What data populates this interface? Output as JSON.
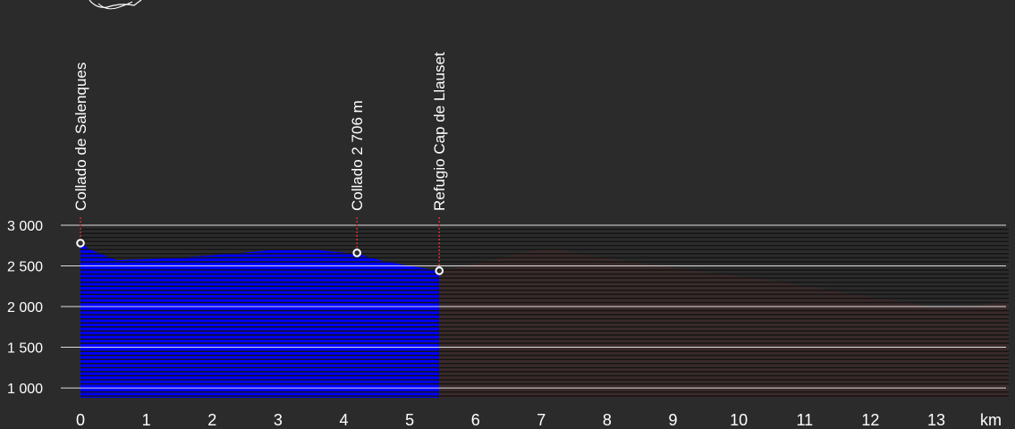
{
  "chart_data": {
    "type": "area",
    "title": "",
    "xlabel": "",
    "ylabel": "",
    "x_unit": "km",
    "xlim": [
      0,
      14.1
    ],
    "ylim": [
      880,
      3000
    ],
    "x_ticks": [
      0,
      1,
      2,
      3,
      4,
      5,
      6,
      7,
      8,
      9,
      10,
      11,
      12,
      13
    ],
    "x_tick_labels": [
      "0",
      "1",
      "2",
      "3",
      "4",
      "5",
      "6",
      "7",
      "8",
      "9",
      "10",
      "11",
      "12",
      "13"
    ],
    "y_ticks": [
      3000,
      2500,
      2000,
      1500,
      1000
    ],
    "y_tick_labels": [
      "3 000",
      "2 500",
      "2 000",
      "1 500",
      "1 000"
    ],
    "grid": true,
    "series": [
      {
        "color": "#0000ff",
        "x": [
          0,
          0.15,
          0.55,
          1.2,
          2.0,
          3.0,
          3.5,
          4.2,
          4.6,
          5.0,
          5.45
        ],
        "y": [
          2780,
          2700,
          2570,
          2590,
          2630,
          2700,
          2700,
          2650,
          2560,
          2500,
          2440
        ]
      },
      {
        "color": "#3a2a2a",
        "x": [
          5.45,
          6.2,
          6.8,
          7.2,
          7.8,
          9.0,
          10.5,
          12.0,
          13.0,
          13.7,
          14.1
        ],
        "y": [
          2440,
          2560,
          2680,
          2720,
          2620,
          2480,
          2320,
          2120,
          1990,
          2020,
          2080
        ]
      }
    ],
    "waypoints": [
      {
        "label": "Collado de Salenques",
        "x": 0,
        "y": 2780
      },
      {
        "label": "Collado 2 706 m",
        "x": 4.2,
        "y": 2660
      },
      {
        "label": "Refugio  Cap de Llauset",
        "x": 5.45,
        "y": 2440
      }
    ]
  }
}
